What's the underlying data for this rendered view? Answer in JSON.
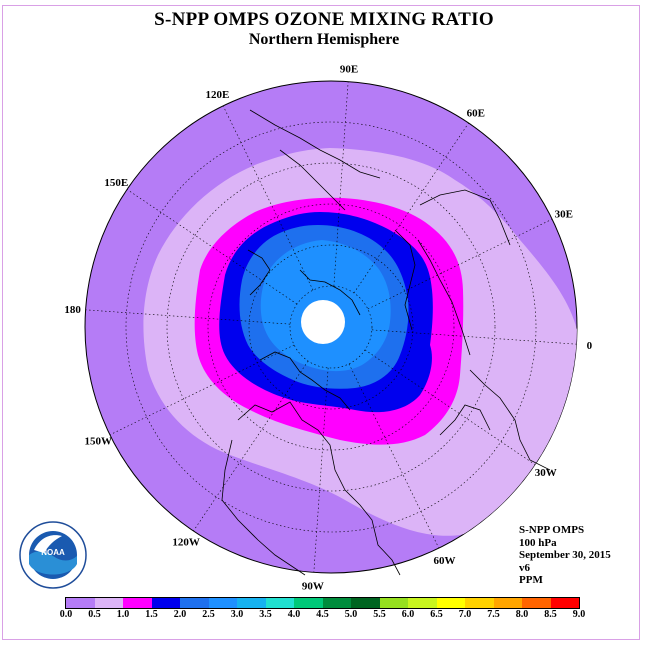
{
  "title": "S-NPP OMPS OZONE MIXING RATIO",
  "subtitle": "Northern Hemisphere",
  "longitude_labels": [
    {
      "text": "90E",
      "lon": 90
    },
    {
      "text": "60E",
      "lon": 60
    },
    {
      "text": "30E",
      "lon": 30
    },
    {
      "text": "0",
      "lon": 0
    },
    {
      "text": "30W",
      "lon": -30
    },
    {
      "text": "60W",
      "lon": -60
    },
    {
      "text": "90W",
      "lon": -90
    },
    {
      "text": "120W",
      "lon": -120
    },
    {
      "text": "150W",
      "lon": -150
    },
    {
      "text": "180",
      "lon": 180
    },
    {
      "text": "150E",
      "lon": 150
    },
    {
      "text": "120E",
      "lon": 120
    }
  ],
  "info": {
    "instrument": "S-NPP OMPS",
    "level": "100 hPa",
    "date": "September 30, 2015",
    "version": "v6",
    "units": "PPM"
  },
  "colorbar": {
    "labels": [
      "0.0",
      "0.5",
      "1.0",
      "1.5",
      "2.0",
      "2.5",
      "3.0",
      "3.5",
      "4.0",
      "4.5",
      "5.0",
      "5.5",
      "6.0",
      "6.5",
      "7.0",
      "7.5",
      "8.0",
      "8.5",
      "9.0"
    ],
    "colors": [
      "#b57cf6",
      "#dcb4f7",
      "#ff00ff",
      "#0000ee",
      "#1e70ee",
      "#1e90ff",
      "#16b2f0",
      "#20e0d0",
      "#00c878",
      "#008c3c",
      "#006420",
      "#96e01e",
      "#c8f51e",
      "#ffff00",
      "#ffd200",
      "#ffa500",
      "#ff6400",
      "#ff0000",
      "#8b5a2b"
    ]
  },
  "ozone_bands": [
    {
      "level": "0.5-1.0",
      "color": "#dcb4f7"
    },
    {
      "level": "1.0-1.5",
      "color": "#ff00ff"
    },
    {
      "level": "1.5-2.0",
      "color": "#0000ee"
    },
    {
      "level": "2.0-2.5",
      "color": "#1e70ee"
    },
    {
      "level": "2.5-3.0",
      "color": "#1e90ff"
    }
  ],
  "logo": {
    "text": "NOAA",
    "ring_text": "NATIONAL OCEANIC AND ATMOSPHERIC ADMINISTRATION · U.S. DEPARTMENT OF COMMERCE"
  }
}
